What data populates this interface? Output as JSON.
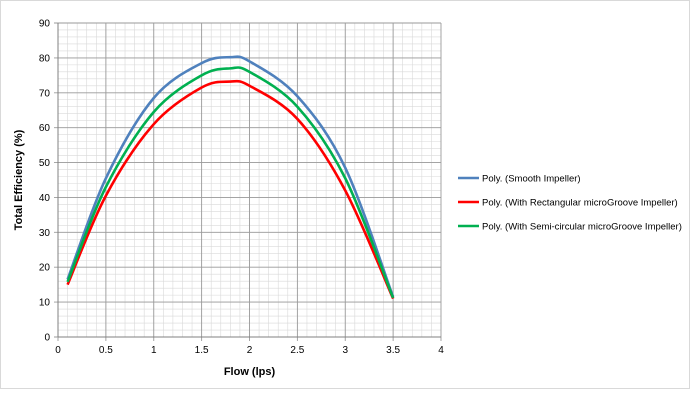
{
  "chart_data": {
    "type": "line",
    "title": "",
    "xlabel": "Flow (lps)",
    "ylabel": "Total Efficiency (%)",
    "xlim": [
      0,
      4
    ],
    "ylim": [
      0,
      90
    ],
    "x_ticks": [
      "0",
      "0.5",
      "1",
      "1.5",
      "2",
      "2.5",
      "3",
      "3.5",
      "4"
    ],
    "y_ticks": [
      "0",
      "10",
      "20",
      "30",
      "40",
      "50",
      "60",
      "70",
      "80",
      "90"
    ],
    "grid": "major and minor",
    "legend_position": "right",
    "series": [
      {
        "name": "Poly. (Smooth Impeller)",
        "color": "#4f81bd",
        "points": [
          [
            0.1,
            16.5
          ],
          [
            0.5,
            45.5
          ],
          [
            1.0,
            68.5
          ],
          [
            1.5,
            78.5
          ],
          [
            1.8,
            80.2
          ],
          [
            2.0,
            79.0
          ],
          [
            2.5,
            69.0
          ],
          [
            3.0,
            48.5
          ],
          [
            3.5,
            11.5
          ]
        ]
      },
      {
        "name": "Poly. (With Rectangular microGroove Impeller)",
        "color": "#ff0000",
        "points": [
          [
            0.1,
            15.0
          ],
          [
            0.5,
            40.5
          ],
          [
            1.0,
            61.0
          ],
          [
            1.5,
            71.5
          ],
          [
            1.8,
            73.2
          ],
          [
            2.0,
            72.0
          ],
          [
            2.5,
            62.5
          ],
          [
            3.0,
            42.0
          ],
          [
            3.5,
            11.0
          ]
        ]
      },
      {
        "name": "Poly. (With Semi-circular microGroove Impeller)",
        "color": "#00b050",
        "points": [
          [
            0.1,
            15.8
          ],
          [
            0.5,
            43.0
          ],
          [
            1.0,
            64.5
          ],
          [
            1.5,
            75.0
          ],
          [
            1.8,
            77.0
          ],
          [
            2.0,
            76.0
          ],
          [
            2.5,
            66.0
          ],
          [
            3.0,
            45.5
          ],
          [
            3.5,
            11.2
          ]
        ]
      }
    ]
  }
}
